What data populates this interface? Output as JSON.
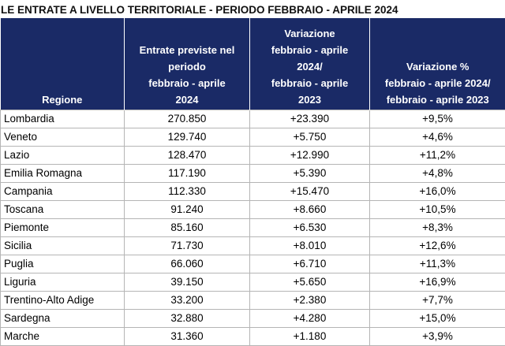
{
  "title": "LE ENTRATE A LIVELLO TERRITORIALE - PERIODO FEBBRAIO - APRILE 2024",
  "headers": [
    [
      "Regione"
    ],
    [
      "Entrate previste nel",
      "periodo",
      "febbraio - aprile",
      "2024"
    ],
    [
      "Variazione",
      "febbraio - aprile",
      "2024/",
      "febbraio - aprile",
      "2023"
    ],
    [
      "Variazione %",
      "febbraio - aprile 2024/",
      "febbraio - aprile 2023"
    ]
  ],
  "rows": [
    [
      "Lombardia",
      "270.850",
      "+23.390",
      "+9,5%"
    ],
    [
      "Veneto",
      "129.740",
      "+5.750",
      "+4,6%"
    ],
    [
      "Lazio",
      "128.470",
      "+12.990",
      "+11,2%"
    ],
    [
      "Emilia Romagna",
      "117.190",
      "+5.390",
      "+4,8%"
    ],
    [
      "Campania",
      "112.330",
      "+15.470",
      "+16,0%"
    ],
    [
      "Toscana",
      "91.240",
      "+8.660",
      "+10,5%"
    ],
    [
      "Piemonte",
      "85.160",
      "+6.530",
      "+8,3%"
    ],
    [
      "Sicilia",
      "71.730",
      "+8.010",
      "+12,6%"
    ],
    [
      "Puglia",
      "66.060",
      "+6.710",
      "+11,3%"
    ],
    [
      "Liguria",
      "39.150",
      "+5.650",
      "+16,9%"
    ],
    [
      "Trentino-Alto Adige",
      "33.200",
      "+2.380",
      "+7,7%"
    ],
    [
      "Sardegna",
      "32.880",
      "+4.280",
      "+15,0%"
    ],
    [
      "Marche",
      "31.360",
      "+1.180",
      "+3,9%"
    ]
  ],
  "colors": {
    "header_bg": "#1a2a66",
    "header_text": "#ffffff",
    "border": "#b5b5b5"
  }
}
